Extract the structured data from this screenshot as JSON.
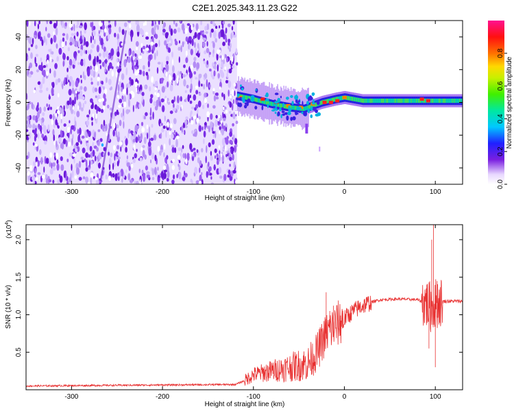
{
  "title": "C2E1.2025.343.11.23.G22",
  "chart_data": [
    {
      "type": "heatmap",
      "xlabel": "Height of straight line (km)",
      "ylabel": "Frequency (Hz)",
      "xlim": [
        -350,
        130
      ],
      "ylim": [
        -50,
        50
      ],
      "xticks": [
        -300,
        -200,
        -100,
        0,
        100
      ],
      "yticks": [
        -40,
        -20,
        0,
        20,
        40
      ],
      "noise_region_x": [
        -350,
        -118
      ],
      "signal_band": {
        "x_start": -118,
        "x_end": 130,
        "center_freq": [
          {
            "x": -118,
            "f": 4
          },
          {
            "x": -100,
            "f": 2
          },
          {
            "x": -80,
            "f": -1
          },
          {
            "x": -60,
            "f": -3
          },
          {
            "x": -45,
            "f": -4
          },
          {
            "x": -35,
            "f": -2
          },
          {
            "x": -25,
            "f": 0
          },
          {
            "x": -10,
            "f": 2
          },
          {
            "x": 0,
            "f": 3
          },
          {
            "x": 20,
            "f": 1
          },
          {
            "x": 60,
            "f": 1
          },
          {
            "x": 100,
            "f": 1
          },
          {
            "x": 130,
            "f": 1
          }
        ]
      },
      "colorbar": {
        "label": "Normalized spectral amplitude",
        "range": [
          0,
          1
        ],
        "ticks": [
          "0.0",
          "0.2",
          "0.4",
          "0.6",
          "0.8"
        ],
        "tick_values": [
          0,
          0.2,
          0.4,
          0.6,
          0.8
        ]
      }
    },
    {
      "type": "line",
      "xlabel": "Height of straight line (km)",
      "ylabel": "SNR (10 * v/v)",
      "y_scale_label": "(x10",
      "y_scale_exp": "4",
      "xlim": [
        -350,
        130
      ],
      "ylim": [
        0,
        2.2
      ],
      "xticks": [
        -300,
        -200,
        -100,
        0,
        100
      ],
      "yticks": [
        0.5,
        1.0,
        1.5,
        2.0
      ],
      "ytick_labels": [
        "0.5",
        "1.0",
        "1.5",
        "2.0"
      ],
      "color": "#e83030",
      "envelope": [
        {
          "x": -350,
          "y": 0.05
        },
        {
          "x": -250,
          "y": 0.06
        },
        {
          "x": -120,
          "y": 0.07
        },
        {
          "x": -110,
          "y": 0.12
        },
        {
          "x": -100,
          "y": 0.2
        },
        {
          "x": -80,
          "y": 0.25
        },
        {
          "x": -60,
          "y": 0.3
        },
        {
          "x": -40,
          "y": 0.35
        },
        {
          "x": -30,
          "y": 0.5
        },
        {
          "x": -20,
          "y": 0.75
        },
        {
          "x": -10,
          "y": 0.85
        },
        {
          "x": 0,
          "y": 0.95
        },
        {
          "x": 10,
          "y": 1.05
        },
        {
          "x": 20,
          "y": 1.12
        },
        {
          "x": 30,
          "y": 1.17
        },
        {
          "x": 40,
          "y": 1.2
        },
        {
          "x": 60,
          "y": 1.21
        },
        {
          "x": 80,
          "y": 1.2
        },
        {
          "x": 90,
          "y": 1.15
        },
        {
          "x": 95,
          "y": 1.1
        },
        {
          "x": 100,
          "y": 1.15
        },
        {
          "x": 110,
          "y": 1.18
        },
        {
          "x": 130,
          "y": 1.18
        }
      ],
      "spikes": [
        {
          "x": -20,
          "y": 1.3
        },
        {
          "x": -16,
          "y": 1.05
        },
        {
          "x": -12,
          "y": 1.12
        },
        {
          "x": 90,
          "y": 1.35
        },
        {
          "x": 93,
          "y": 0.55
        },
        {
          "x": 96,
          "y": 2.0
        },
        {
          "x": 98,
          "y": 2.2
        },
        {
          "x": 100,
          "y": 0.3
        },
        {
          "x": 102,
          "y": 1.45
        }
      ]
    }
  ]
}
